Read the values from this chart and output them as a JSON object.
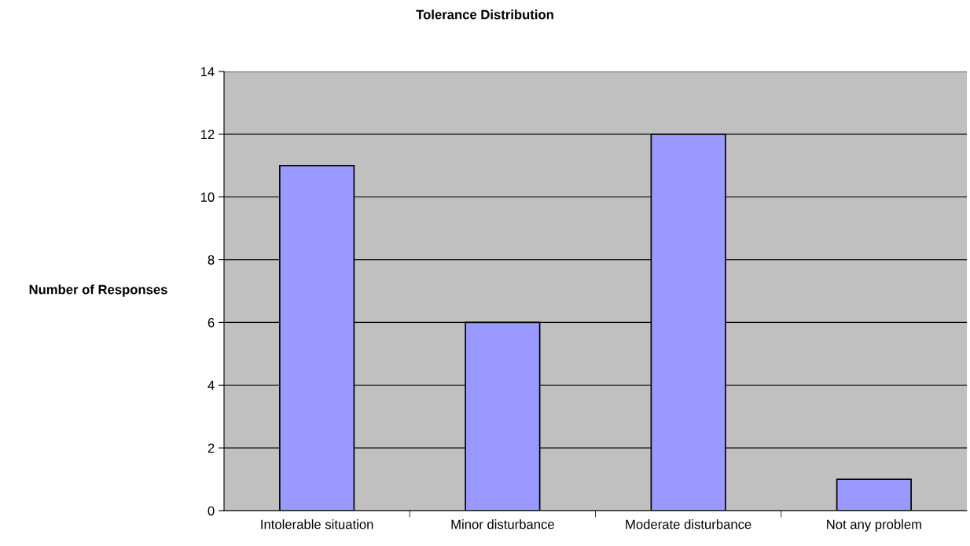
{
  "chart_data": {
    "type": "bar",
    "title": "Tolerance Distribution",
    "ylabel": "Number of Responses",
    "categories": [
      "Intolerable situation",
      "Minor disturbance",
      "Moderate disturbance",
      "Not any problem"
    ],
    "values": [
      11,
      6,
      12,
      1
    ],
    "color": "#9999ff",
    "ylim": [
      0,
      14
    ],
    "yticks": [
      0,
      2,
      4,
      6,
      8,
      10,
      12,
      14
    ],
    "grid": "y",
    "legend": false
  }
}
